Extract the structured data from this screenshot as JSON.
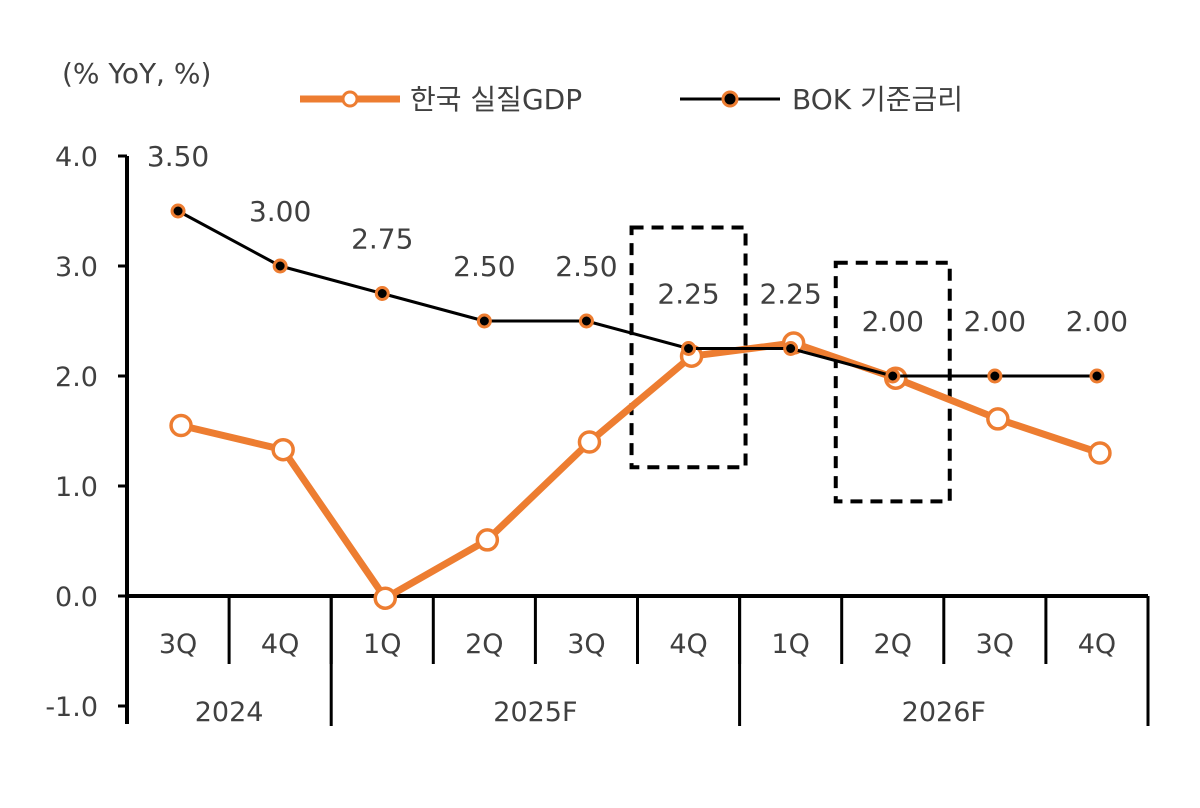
{
  "chart_data": {
    "type": "line",
    "unit_label": "(% YoY, %)",
    "categories": [
      "3Q",
      "4Q",
      "1Q",
      "2Q",
      "3Q",
      "4Q",
      "1Q",
      "2Q",
      "3Q",
      "4Q"
    ],
    "year_groups": [
      {
        "label": "2024",
        "span": 2
      },
      {
        "label": "2025F",
        "span": 4
      },
      {
        "label": "2026F",
        "span": 4
      }
    ],
    "ylim": [
      -1.0,
      4.0
    ],
    "yticks": [
      "-1.0",
      "0.0",
      "1.0",
      "2.0",
      "3.0",
      "4.0"
    ],
    "ytick_values": [
      -1.0,
      0.0,
      1.0,
      2.0,
      3.0,
      4.0
    ],
    "series": [
      {
        "name": "한국 실질GDP",
        "color": "#ED7D31",
        "marker": "hollow-circle",
        "values": [
          1.55,
          1.33,
          -0.02,
          0.51,
          1.4,
          2.18,
          2.3,
          1.98,
          1.61,
          1.3
        ]
      },
      {
        "name": "BOK 기준금리",
        "color": "#000000",
        "marker_fill": "#ED7D31",
        "values": [
          3.5,
          3.0,
          2.75,
          2.5,
          2.5,
          2.25,
          2.25,
          2.0,
          2.0,
          2.0
        ],
        "labels": [
          "3.50",
          "3.00",
          "2.75",
          "2.50",
          "2.50",
          "2.25",
          "2.25",
          "2.00",
          "2.00",
          "2.00"
        ]
      }
    ],
    "highlight_boxes": [
      {
        "category_index": 5,
        "y_top": 3.35,
        "y_bottom": 1.17
      },
      {
        "category_index": 7,
        "y_top": 3.03,
        "y_bottom": 0.86
      }
    ],
    "legend_position": "top",
    "grid": false
  }
}
